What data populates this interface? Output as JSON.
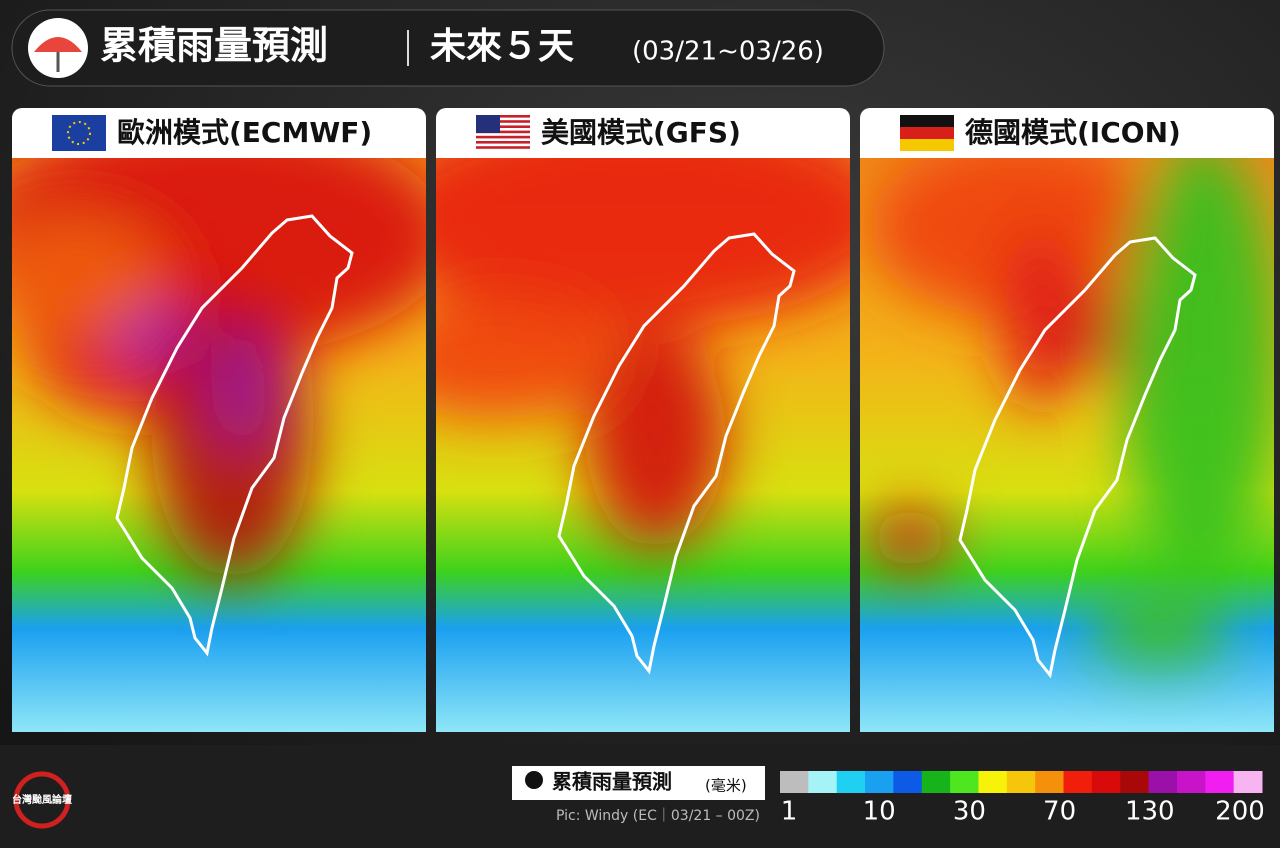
{
  "header": {
    "title": "累積雨量預測",
    "subtitle": "未來５天",
    "date_range": "(03/21~03/26)"
  },
  "panels": [
    {
      "label": "歐洲模式(ECMWF)"
    },
    {
      "label": "美國模式(GFS)"
    },
    {
      "label": "德國模式(ICON)"
    }
  ],
  "legend": {
    "title": "累積雨量預測",
    "unit": "(毫米)",
    "colors": [
      "#bdbdbd",
      "#a6f3f7",
      "#20d0f2",
      "#1aa0f0",
      "#0c5ae6",
      "#16b41a",
      "#4ee61e",
      "#f7f20a",
      "#f6c60a",
      "#f5900a",
      "#f01e0a",
      "#d80a0a",
      "#a80808",
      "#9a10a8",
      "#c814c8",
      "#f01ef0",
      "#f7b4f0"
    ],
    "ticks": [
      1,
      10,
      30,
      70,
      130,
      200
    ]
  },
  "source": "Pic: Windy (EC｜03/21 – 00Z)",
  "logo": "台灣颱風論壇"
}
